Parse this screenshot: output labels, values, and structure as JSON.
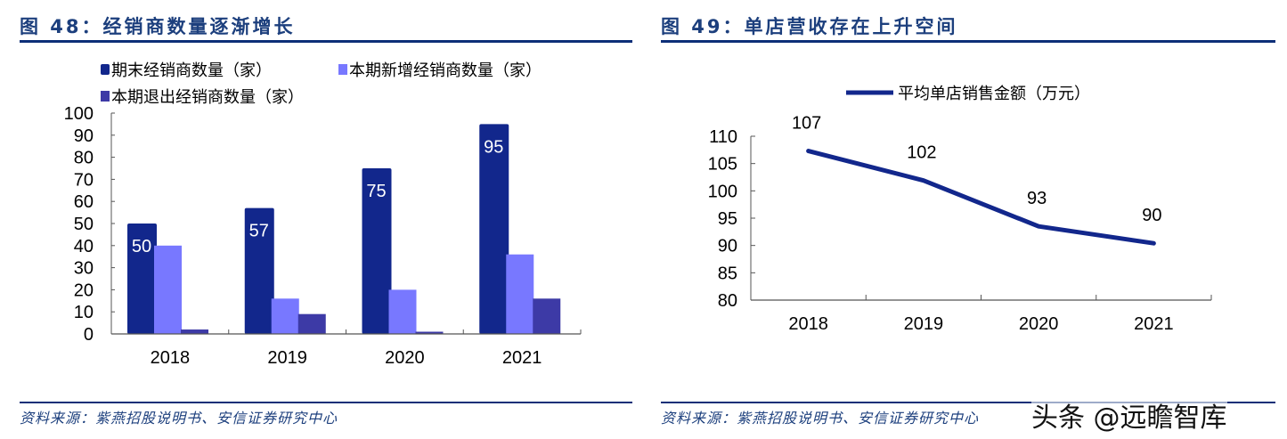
{
  "left_panel": {
    "title": "图 48：经销商数量逐渐增长",
    "source": "资料来源：紫燕招股说明书、安信证券研究中心"
  },
  "right_panel": {
    "title": "图 49：单店营收存在上升空间",
    "source": "资料来源：紫燕招股说明书、安信证券研究中心"
  },
  "watermark": "头条 @远瞻智库",
  "colors": {
    "title": "#1c3f7d",
    "rule": "#0d2f78",
    "series_end": "#12278c",
    "series_new": "#7878ff",
    "series_exit": "#3d3aa6",
    "line": "#12278c"
  },
  "chart_data": [
    {
      "type": "bar",
      "title": "经销商数量逐渐增长",
      "categories": [
        "2018",
        "2019",
        "2020",
        "2021"
      ],
      "series": [
        {
          "name": "期末经销商数量（家）",
          "values": [
            50,
            57,
            75,
            95
          ],
          "color": "#12278c",
          "data_labels": [
            "50",
            "57",
            "75",
            "95"
          ]
        },
        {
          "name": "本期新增经销商数量（家）",
          "values": [
            40,
            16,
            20,
            36
          ],
          "color": "#7878ff"
        },
        {
          "name": "本期退出经销商数量（家）",
          "values": [
            2,
            9,
            1,
            16
          ],
          "color": "#3d3aa6"
        }
      ],
      "xlabel": "",
      "ylabel": "",
      "ylim": [
        0,
        100
      ],
      "yticks": [
        "0",
        "10",
        "20",
        "30",
        "40",
        "50",
        "60",
        "70",
        "80",
        "90",
        "100"
      ],
      "grid": false,
      "legend_position": "top"
    },
    {
      "type": "line",
      "title": "单店营收存在上升空间",
      "categories": [
        "2018",
        "2019",
        "2020",
        "2021"
      ],
      "series": [
        {
          "name": "平均单店销售金额（万元）",
          "values": [
            107,
            102,
            93,
            90
          ],
          "color": "#12278c",
          "data_labels": [
            "107",
            "102",
            "93",
            "90"
          ]
        }
      ],
      "xlabel": "",
      "ylabel": "",
      "ylim": [
        80,
        110
      ],
      "yticks": [
        "80",
        "85",
        "90",
        "95",
        "100",
        "105",
        "110"
      ],
      "grid": false,
      "legend_position": "top"
    }
  ]
}
